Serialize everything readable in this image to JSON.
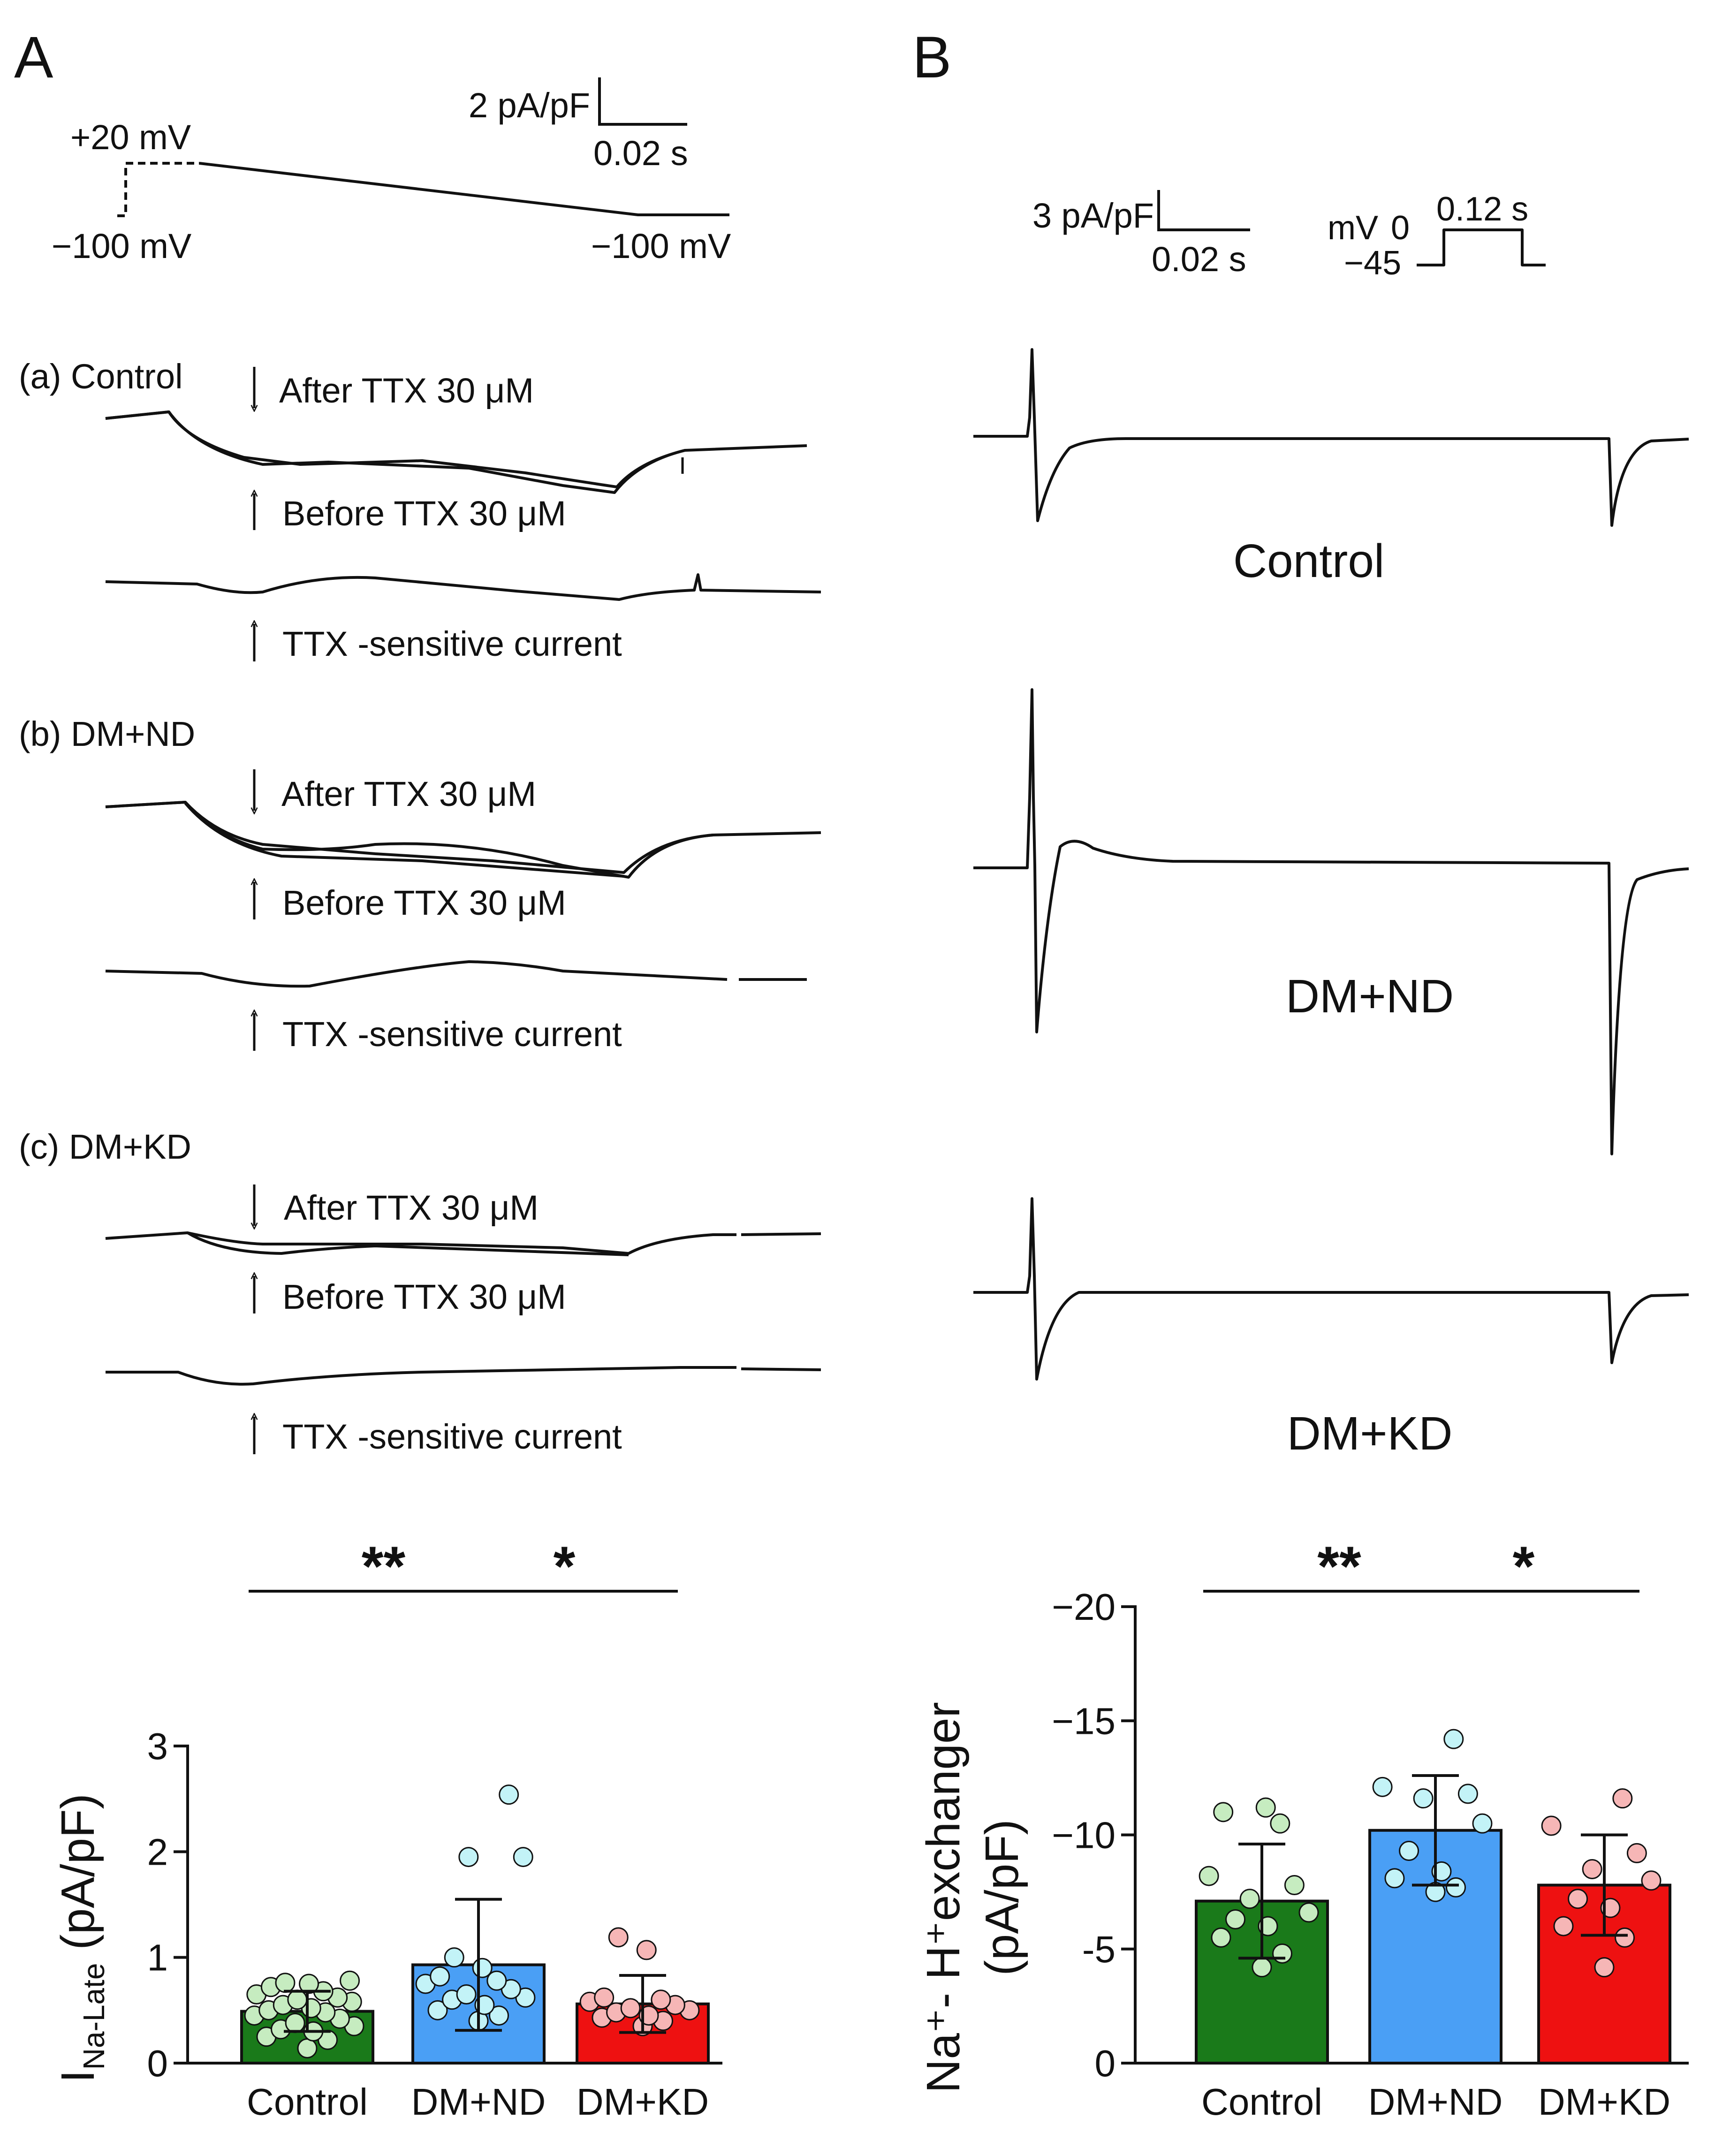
{
  "panel_a": {
    "letter": "A",
    "scale_y": "2 pA/pF",
    "scale_x": "0.02 s",
    "protocol": {
      "v_hold": "−100 mV",
      "v_step": "+20 mV",
      "v_end": "−100 mV"
    },
    "sections": [
      {
        "label": "(a) Control",
        "after": "After TTX 30 μM",
        "before": "Before TTX 30 μM",
        "diff": "TTX -sensitive current"
      },
      {
        "label": "(b) DM+ND",
        "after": "After TTX 30 μM",
        "before": "Before TTX 30 μM",
        "diff": "TTX -sensitive current"
      },
      {
        "label": "(c) DM+KD",
        "after": "After TTX 30 μM",
        "before": "Before TTX 30 μM",
        "diff": "TTX -sensitive current"
      }
    ]
  },
  "panel_b": {
    "letter": "B",
    "scale_y": "3 pA/pF",
    "scale_x": "0.02 s",
    "protocol": {
      "unit": "mV",
      "v_top": "0",
      "v_base": "−45",
      "duration": "0.12 s"
    },
    "traces": [
      {
        "label": "Control"
      },
      {
        "label": "DM+ND"
      },
      {
        "label": "DM+KD"
      }
    ]
  },
  "colors": {
    "control": "#1a7a1a",
    "dm_nd": "#4a9ff5",
    "dm_kd": "#ee1111",
    "control_pt": "#c6ecc0",
    "dm_nd_pt": "#c3f3f7",
    "dm_kd_pt": "#f6b6b6"
  },
  "chart_data": [
    {
      "type": "bar",
      "ylabel_main": "I",
      "ylabel_sub": "Na-Late",
      "ylabel_unit": " (pA/pF)",
      "categories": [
        "Control",
        "DM+ND",
        "DM+KD"
      ],
      "values": [
        0.49,
        0.93,
        0.56
      ],
      "errors": [
        0.19,
        0.62,
        0.27
      ],
      "ylim": [
        0,
        3
      ],
      "yticks": [
        0,
        1,
        2,
        3
      ],
      "ytick_labels": [
        "0",
        "1",
        "2",
        "3"
      ],
      "points": [
        [
          0.14,
          0.22,
          0.25,
          0.3,
          0.32,
          0.35,
          0.38,
          0.42,
          0.45,
          0.48,
          0.5,
          0.52,
          0.55,
          0.58,
          0.6,
          0.62,
          0.65,
          0.68,
          0.72,
          0.75,
          0.76,
          0.78
        ],
        [
          0.4,
          0.45,
          0.5,
          0.55,
          0.6,
          0.62,
          0.65,
          0.7,
          0.75,
          0.78,
          0.82,
          0.9,
          1.0,
          1.95,
          1.95,
          2.54
        ],
        [
          0.35,
          0.4,
          0.43,
          0.45,
          0.48,
          0.5,
          0.52,
          0.55,
          0.58,
          0.6,
          0.62,
          1.07,
          1.19
        ]
      ],
      "significance": [
        {
          "from": 0,
          "to": 1,
          "label": "**"
        },
        {
          "from": 1,
          "to": 2,
          "label": "*"
        }
      ]
    },
    {
      "type": "bar",
      "ylabel_line1": "Na⁺- H⁺exchanger",
      "ylabel_line2": "(pA/pF)",
      "categories": [
        "Control",
        "DM+ND",
        "DM+KD"
      ],
      "values": [
        -7.1,
        -10.2,
        -7.8
      ],
      "errors": [
        2.5,
        2.4,
        2.2
      ],
      "ylim": [
        0,
        -20
      ],
      "yticks": [
        0,
        -5,
        -10,
        -15,
        -20
      ],
      "ytick_labels": [
        "0",
        "-5",
        "−10",
        "−15",
        "−20"
      ],
      "points": [
        [
          -4.2,
          -4.8,
          -5.5,
          -6.0,
          -6.3,
          -6.6,
          -7.2,
          -7.8,
          -8.2,
          -10.5,
          -11.0,
          -11.2
        ],
        [
          -7.5,
          -7.7,
          -8.1,
          -8.4,
          -9.3,
          -10.5,
          -11.6,
          -11.8,
          -12.1,
          -14.2
        ],
        [
          -4.2,
          -5.5,
          -6.0,
          -6.8,
          -7.2,
          -8.0,
          -8.5,
          -9.2,
          -10.4,
          -11.6
        ]
      ],
      "significance": [
        {
          "from": 0,
          "to": 1,
          "label": "**"
        },
        {
          "from": 1,
          "to": 2,
          "label": "*"
        }
      ]
    }
  ]
}
